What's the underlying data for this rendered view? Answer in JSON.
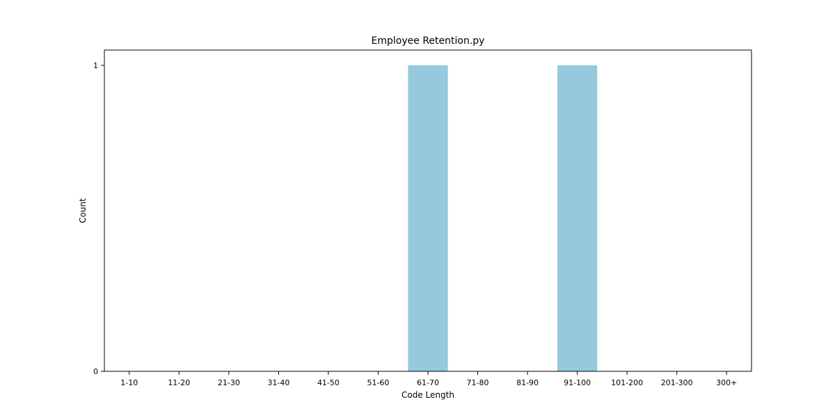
{
  "chart_data": {
    "type": "bar",
    "title": "Employee Retention.py",
    "xlabel": "Code Length",
    "ylabel": "Count",
    "categories": [
      "1-10",
      "11-20",
      "21-30",
      "31-40",
      "41-50",
      "51-60",
      "61-70",
      "71-80",
      "81-90",
      "91-100",
      "101-200",
      "201-300",
      "300+"
    ],
    "values": [
      0,
      0,
      0,
      0,
      0,
      0,
      1,
      0,
      0,
      1,
      0,
      0,
      0
    ],
    "yticks": [
      "0",
      "1"
    ],
    "ylim": [
      0,
      1.05
    ],
    "grid": false,
    "legend": "none",
    "bar_color": "#96c9dc",
    "axis_color": "#000000"
  }
}
